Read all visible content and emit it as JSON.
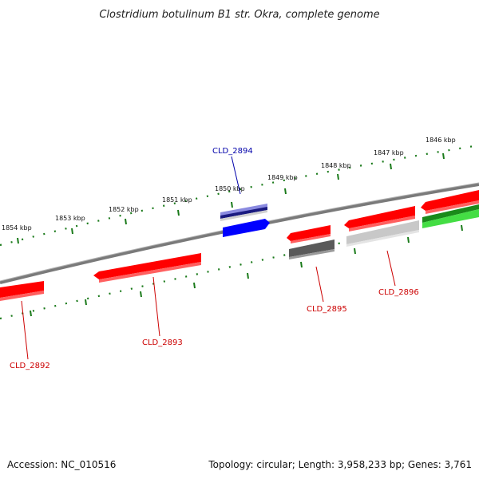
{
  "title": "Clostridium botulinum B1 str. Okra, complete genome",
  "footer": {
    "accession": "Accession: NC_010516",
    "summary": "Topology: circular; Length: 3,958,233 bp; Genes: 3,761"
  },
  "colors": {
    "background": "#ffffff",
    "backbone": "#808080",
    "ticks": "#1a7a1a",
    "gene_red": "#ff0000",
    "gene_blue": "#0000ff",
    "gene_navy": "#1a1a80",
    "gene_gray": "#646464",
    "gene_light": "#c8c8c8",
    "gene_green": "#22bb22",
    "label_red": "#cc0000",
    "label_blue": "#0000aa"
  },
  "tick_labels": [
    "1854 kbp",
    "1853 kbp",
    "1852 kbp",
    "1851 kbp",
    "1850 kbp",
    "1849 kbp",
    "1848 kbp",
    "1847 kbp",
    "1846 kbp"
  ],
  "gene_labels": [
    "CLD_2892",
    "CLD_2893",
    "CLD_2894",
    "CLD_2895",
    "CLD_2896"
  ]
}
